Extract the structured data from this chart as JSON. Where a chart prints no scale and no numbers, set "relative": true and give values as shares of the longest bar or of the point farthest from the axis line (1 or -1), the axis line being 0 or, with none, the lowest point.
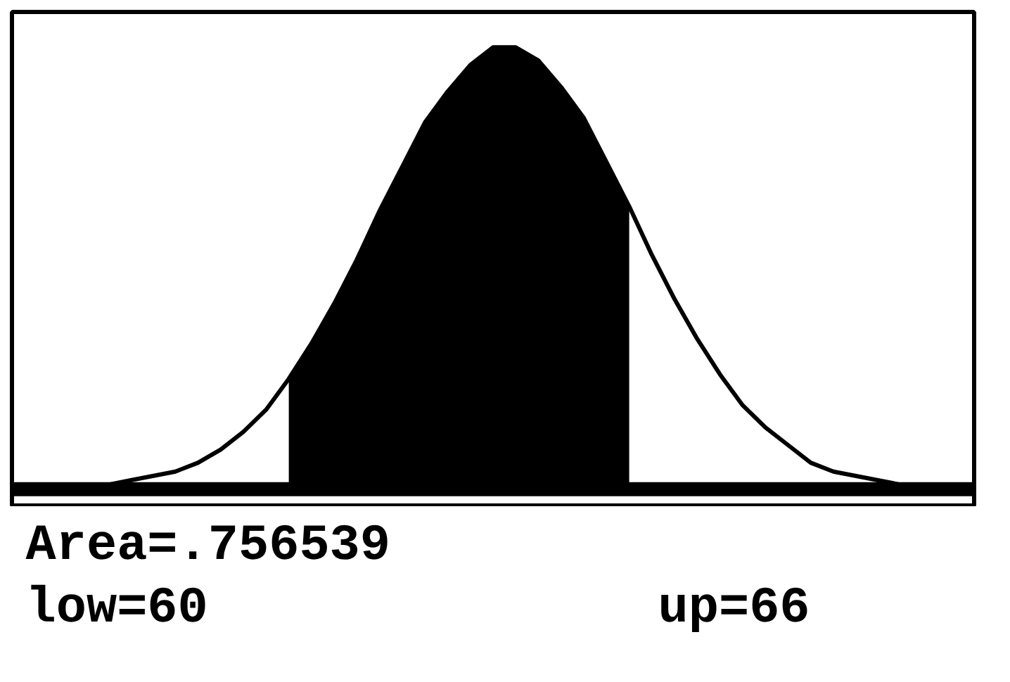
{
  "chart_data": {
    "type": "line",
    "relative": true,
    "grid": false,
    "categories": [
      null,
      null,
      null,
      null,
      null,
      null,
      null,
      null,
      null,
      null,
      null,
      null,
      null,
      null,
      null,
      null,
      null,
      null,
      null,
      null,
      null,
      null,
      null,
      null,
      null,
      null,
      null,
      null,
      null,
      null,
      null,
      null,
      null,
      null,
      null,
      null,
      null,
      null,
      null,
      null,
      null,
      null,
      null
    ],
    "series": [
      {
        "type": "area",
        "color": "#000000",
        "values": [
          null,
          null,
          null,
          null,
          null,
          null,
          null,
          null,
          null,
          null,
          null,
          null,
          0.25,
          0.33,
          0.42,
          0.52,
          0.63,
          0.73,
          0.83,
          0.9,
          0.96,
          1.0,
          1.0,
          0.97,
          0.91,
          0.84,
          0.74,
          0.64,
          null,
          null,
          null,
          null,
          null,
          null,
          null,
          null,
          null,
          null,
          null,
          null,
          null,
          null,
          null
        ]
      },
      {
        "color": "#000000",
        "values": [
          0.0,
          0.0,
          0.0,
          0.01,
          0.01,
          0.02,
          0.03,
          0.04,
          0.06,
          0.09,
          0.13,
          0.18,
          0.25,
          0.33,
          0.42,
          0.52,
          0.63,
          0.73,
          0.83,
          0.9,
          0.96,
          1.0,
          1.0,
          0.97,
          0.91,
          0.84,
          0.74,
          0.64,
          0.53,
          0.43,
          0.34,
          0.26,
          0.19,
          0.14,
          0.1,
          0.06,
          0.04,
          0.03,
          0.02,
          0.01,
          0.01,
          0.0,
          0.0
        ]
      }
    ],
    "annotations": [
      "Area=.756539",
      "low=60",
      "up=66"
    ]
  }
}
